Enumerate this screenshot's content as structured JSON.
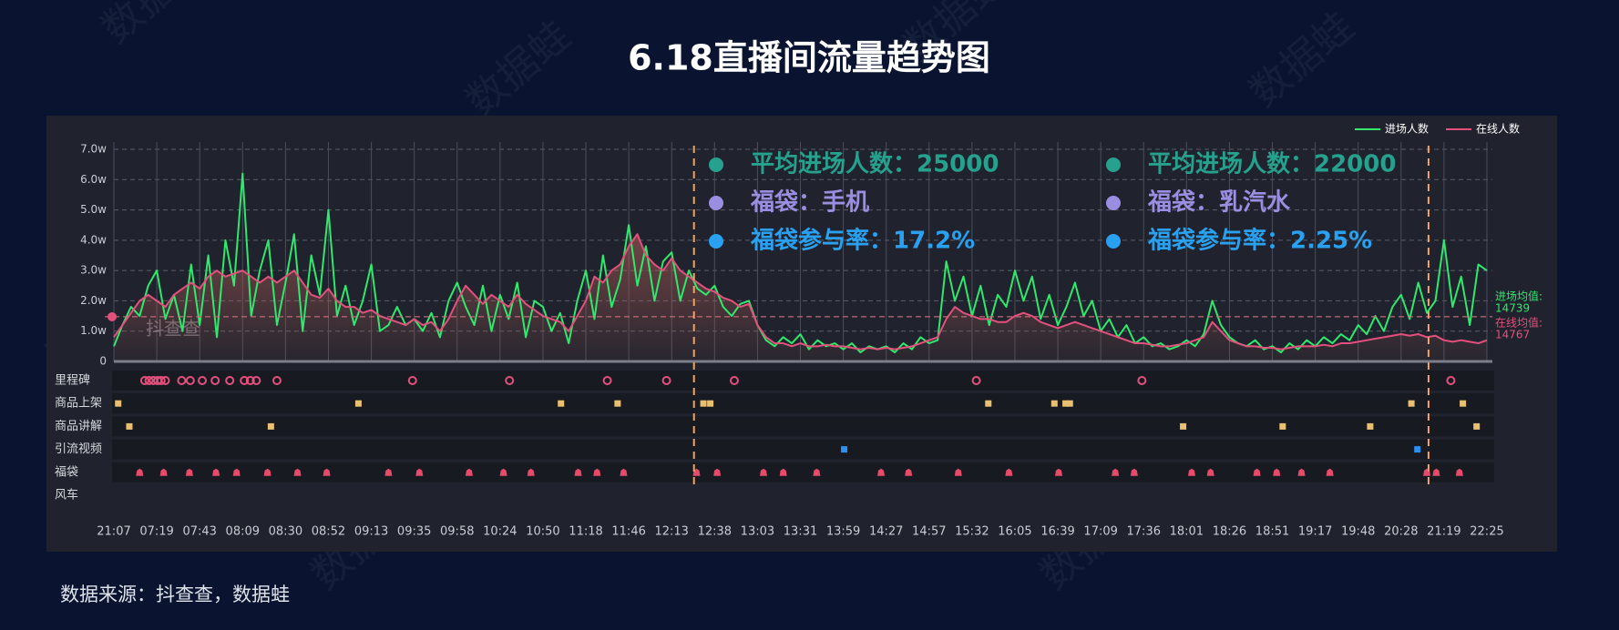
{
  "chart_data": {
    "type": "line",
    "title": "6.18直播间流量趋势图",
    "source": "数据来源：抖查查，数据蛙",
    "watermark": "数据蛙",
    "logo": "抖查查",
    "categories": [
      "21:07",
      null,
      null,
      null,
      null,
      "07:19",
      null,
      null,
      null,
      null,
      "07:43",
      null,
      null,
      null,
      null,
      "08:09",
      null,
      null,
      null,
      null,
      "08:30",
      null,
      null,
      null,
      null,
      "08:52",
      null,
      null,
      null,
      null,
      "09:13",
      null,
      null,
      null,
      null,
      "09:35",
      null,
      null,
      null,
      null,
      "09:58",
      null,
      null,
      null,
      null,
      "10:24",
      null,
      null,
      null,
      null,
      "10:50",
      null,
      null,
      null,
      null,
      "11:18",
      null,
      null,
      null,
      null,
      "11:46",
      null,
      null,
      null,
      null,
      "12:13",
      null,
      null,
      null,
      null,
      "12:38",
      null,
      null,
      null,
      null,
      "13:03",
      null,
      null,
      null,
      null,
      "13:31",
      null,
      null,
      null,
      null,
      "13:59",
      null,
      null,
      null,
      null,
      "14:27",
      null,
      null,
      null,
      null,
      "14:57",
      null,
      null,
      null,
      null,
      "15:32",
      null,
      null,
      null,
      null,
      "16:05",
      null,
      null,
      null,
      null,
      "16:39",
      null,
      null,
      null,
      null,
      "17:09",
      null,
      null,
      null,
      null,
      "17:36",
      null,
      null,
      null,
      null,
      "18:01",
      null,
      null,
      null,
      null,
      "18:26",
      null,
      null,
      null,
      null,
      "18:51",
      null,
      null,
      null,
      null,
      "19:17",
      null,
      null,
      null,
      null,
      "19:48",
      null,
      null,
      null,
      null,
      "20:28",
      null,
      null,
      null,
      null,
      "21:19",
      null,
      null,
      null,
      null,
      "22:25"
    ],
    "series": [
      {
        "name": "进场人数",
        "color": "#2fe86c",
        "values": [
          5000,
          12000,
          18000,
          15000,
          25000,
          30000,
          14000,
          22000,
          10000,
          32000,
          12000,
          35000,
          8000,
          40000,
          25000,
          62000,
          15000,
          30000,
          40000,
          12000,
          26000,
          42000,
          10000,
          35000,
          22000,
          50000,
          15000,
          25000,
          12000,
          20000,
          32000,
          10000,
          12000,
          18000,
          12000,
          14000,
          10000,
          16000,
          8000,
          20000,
          26000,
          18000,
          12000,
          25000,
          10000,
          22000,
          14000,
          26000,
          8000,
          20000,
          18000,
          10000,
          16000,
          6000,
          20000,
          30000,
          14000,
          35000,
          18000,
          27000,
          45000,
          25000,
          38000,
          20000,
          33000,
          36000,
          20000,
          30000,
          24000,
          22000,
          25000,
          18000,
          15000,
          19000,
          20000,
          12000,
          7000,
          5000,
          8000,
          6000,
          9000,
          4000,
          7000,
          5000,
          6000,
          4000,
          6000,
          3000,
          5000,
          4000,
          5000,
          3000,
          6000,
          4000,
          8000,
          6000,
          7000,
          33000,
          20000,
          28000,
          15000,
          25000,
          12000,
          22000,
          18000,
          30000,
          20000,
          28000,
          14000,
          22000,
          12000,
          18000,
          26000,
          15000,
          20000,
          10000,
          14000,
          8000,
          12000,
          6000,
          8000,
          5000,
          6000,
          4000,
          5000,
          7000,
          5000,
          9000,
          20000,
          12000,
          8000,
          6000,
          5000,
          7000,
          4000,
          5000,
          3000,
          6000,
          4000,
          7000,
          5000,
          8000,
          6000,
          9000,
          7000,
          12000,
          9000,
          15000,
          10000,
          18000,
          22000,
          14000,
          26000,
          16000,
          20000,
          40000,
          18000,
          28000,
          12000,
          32000,
          30000
        ]
      },
      {
        "name": "在线人数",
        "color": "#e4507c",
        "values": [
          8000,
          12000,
          16000,
          20000,
          22000,
          20000,
          18000,
          22000,
          24000,
          26000,
          24000,
          28000,
          30000,
          28000,
          29000,
          30000,
          28000,
          26000,
          28000,
          26000,
          28000,
          30000,
          26000,
          22000,
          21000,
          24000,
          20000,
          18000,
          18000,
          16000,
          17000,
          15000,
          14000,
          13000,
          12000,
          14000,
          12000,
          13000,
          10000,
          14000,
          20000,
          25000,
          22000,
          19000,
          22000,
          20000,
          18000,
          22000,
          19000,
          17000,
          15000,
          14000,
          13000,
          10000,
          15000,
          20000,
          28000,
          26000,
          30000,
          32000,
          38000,
          42000,
          35000,
          32000,
          30000,
          34000,
          30000,
          28000,
          26000,
          24000,
          23000,
          21000,
          20000,
          18000,
          19000,
          12000,
          8000,
          6000,
          6000,
          5000,
          6000,
          5000,
          5000,
          5500,
          5000,
          5000,
          4500,
          4000,
          4500,
          4000,
          4500,
          4000,
          4500,
          5000,
          6000,
          7000,
          8000,
          14000,
          18000,
          16000,
          15000,
          14000,
          14000,
          13000,
          13000,
          15000,
          16000,
          15000,
          13000,
          12000,
          11000,
          12000,
          13000,
          12000,
          11000,
          10000,
          9000,
          8000,
          7000,
          6000,
          6000,
          5500,
          5000,
          5000,
          5500,
          6000,
          7000,
          8000,
          13000,
          10000,
          7000,
          6000,
          5000,
          5000,
          4500,
          4500,
          4000,
          4500,
          5000,
          5000,
          5000,
          5500,
          5000,
          6000,
          6000,
          6500,
          7000,
          7500,
          8000,
          8500,
          9000,
          8500,
          9000,
          8000,
          8500,
          7000,
          6500,
          7000,
          6500,
          6000,
          7000
        ]
      }
    ],
    "ylim": [
      0,
      70000
    ],
    "yticks": [
      0,
      {
        "value": 10000,
        "label": "1.0w"
      },
      {
        "value": 20000,
        "label": "2.0w"
      },
      {
        "value": 30000,
        "label": "3.0w"
      },
      {
        "value": 40000,
        "label": "4.0w"
      },
      {
        "value": 50000,
        "label": "5.0w"
      },
      {
        "value": 60000,
        "label": "6.0w"
      },
      {
        "value": 70000,
        "label": "7.0w"
      }
    ],
    "grid": true,
    "legend": "top-right",
    "averages": [
      {
        "label": "进场均值:",
        "value": 14739,
        "color": "#2fe86c"
      },
      {
        "label": "在线均值:",
        "value": 14767,
        "color": "#e4507c"
      }
    ],
    "highlight_x": [
      67.6,
      153.2
    ],
    "annotations": [
      [
        "平均进场人数：25000",
        "福袋：手机",
        "福袋参与率：17.2%"
      ],
      [
        "平均进场人数：22000",
        "福袋：乳汽水",
        "福袋参与率：2.25%"
      ]
    ],
    "event_rows": [
      {
        "name": "里程碑",
        "shape": "ring",
        "color": "#e4507c",
        "x": [
          3.6,
          4.1,
          4.6,
          5.1,
          5.5,
          6.0,
          7.9,
          8.9,
          10.3,
          11.8,
          13.5,
          15.2,
          15.9,
          16.6,
          19.0,
          34.8,
          46.1,
          57.5,
          64.4,
          72.3,
          100.5,
          119.8,
          155.8
        ]
      },
      {
        "name": "商品上架",
        "shape": "square",
        "color": "#e8c070",
        "x": [
          0.5,
          28.5,
          52.1,
          58.7,
          68.7,
          69.5,
          101.9,
          109.6,
          110.9,
          111.4,
          151.2,
          157.2
        ]
      },
      {
        "name": "商品讲解",
        "shape": "square",
        "color": "#e8c070",
        "x": [
          1.8,
          18.3,
          124.6,
          136.2,
          146.4,
          158.8
        ]
      },
      {
        "name": "引流视频",
        "shape": "square",
        "color": "#2a8ff0",
        "x": [
          85.1,
          151.9
        ]
      },
      {
        "name": "福袋",
        "shape": "bag",
        "color": "#e84a6a",
        "x": [
          3.0,
          5.8,
          8.8,
          11.9,
          14.3,
          17.9,
          21.4,
          24.8,
          32.0,
          35.6,
          41.4,
          45.4,
          48.6,
          54.1,
          56.3,
          59.4,
          67.9,
          70.3,
          75.7,
          78.0,
          81.9,
          89.4,
          92.6,
          98.4,
          104.3,
          110.1,
          116.7,
          118.9,
          125.6,
          127.8,
          133.2,
          135.5,
          138.4,
          141.7,
          153.0,
          154.1,
          156.8
        ]
      },
      {
        "name": "风车",
        "shape": "square",
        "color": "#e8c070",
        "x": []
      }
    ]
  }
}
